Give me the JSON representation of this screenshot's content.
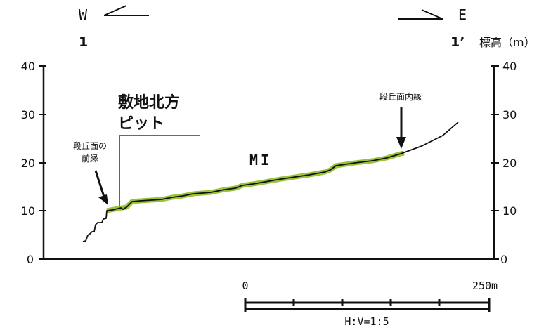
{
  "orientation": {
    "west_label": "W",
    "east_label": "E",
    "start_point": "1",
    "end_point": "1’",
    "elevation_unit": "標高（m）"
  },
  "axes": {
    "y_ticks": [
      "0",
      "10",
      "20",
      "30",
      "40"
    ],
    "y_range": [
      0,
      40
    ]
  },
  "annotations": {
    "pit_label_line1": "敷地北方",
    "pit_label_line2": "ピット",
    "terrace_front_line1": "段丘面の",
    "terrace_front_line2": "前縁",
    "terrace_inner": "段丘面内縁",
    "unit": "MI"
  },
  "scale": {
    "start": "0",
    "end": "250m",
    "ratio": "H:V=1:5"
  },
  "colors": {
    "profile": "#111111",
    "terrace_highlight": "#9cc23c"
  }
}
